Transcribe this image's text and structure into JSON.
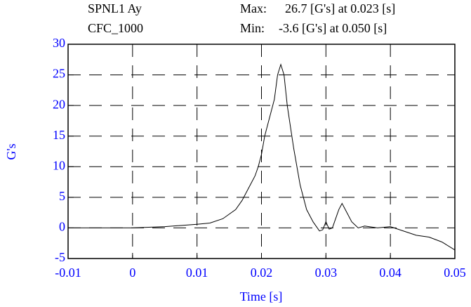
{
  "chart_data": {
    "type": "line",
    "header": {
      "channel": "SPNL1 Ay",
      "filter": "CFC_1000",
      "max_label": "Max:",
      "max_text": "26.7 [G's] at 0.023 [s]",
      "min_label": "Min:",
      "min_text": "-3.6 [G's] at 0.050 [s]"
    },
    "xlabel": "Time [s]",
    "ylabel": "G's",
    "x": [
      -0.01,
      -0.005,
      0,
      0.005,
      0.01,
      0.012,
      0.014,
      0.016,
      0.017,
      0.018,
      0.019,
      0.0195,
      0.02,
      0.0205,
      0.021,
      0.0215,
      0.022,
      0.0225,
      0.023,
      0.0235,
      0.024,
      0.025,
      0.026,
      0.027,
      0.028,
      0.029,
      0.0295,
      0.03,
      0.0305,
      0.031,
      0.032,
      0.0325,
      0.033,
      0.034,
      0.035,
      0.036,
      0.038,
      0.04,
      0.042,
      0.044,
      0.046,
      0.048,
      0.05
    ],
    "series": [
      {
        "color": "#000000",
        "values": [
          0,
          0,
          0,
          0.2,
          0.6,
          0.8,
          1.5,
          3,
          4.5,
          6.5,
          8.5,
          10,
          12,
          15,
          17,
          19,
          21,
          25,
          26.7,
          25,
          20,
          13,
          7,
          3,
          1,
          -0.5,
          -0.3,
          1,
          -0.2,
          0,
          3,
          4,
          3,
          1,
          0,
          0.3,
          0,
          0.2,
          -0.5,
          -1.2,
          -1.5,
          -2.3,
          -3.6
        ]
      }
    ],
    "xlim": [
      -0.01,
      0.05
    ],
    "xticks": [
      -0.01,
      0,
      0.01,
      0.02,
      0.03,
      0.04,
      0.05
    ],
    "ylim": [
      -5,
      30
    ],
    "yticks": [
      -5,
      0,
      5,
      10,
      15,
      20,
      25,
      30
    ],
    "grid": true,
    "tick_color": "#0000ff"
  }
}
